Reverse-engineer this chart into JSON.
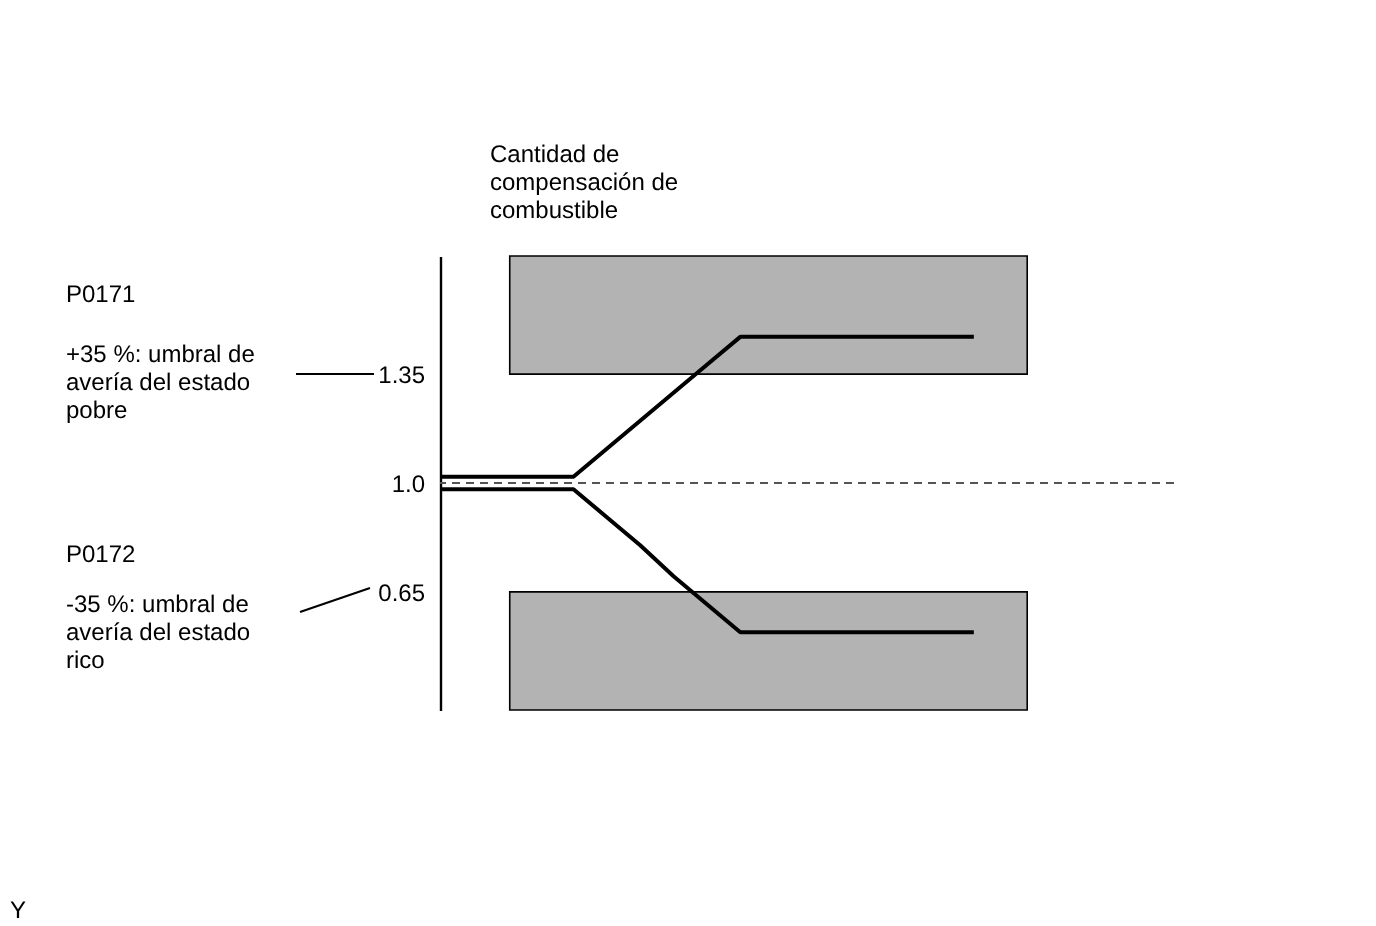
{
  "chart_data": {
    "type": "line",
    "ylabel": "Cantidad de compensación de combustible",
    "categories": [
      null,
      null,
      null,
      null,
      null,
      null,
      null,
      null,
      null,
      null,
      null,
      null,
      null,
      null,
      null,
      null,
      null,
      null,
      null,
      null,
      null,
      null,
      null
    ],
    "ylim": [
      0.27,
      1.73
    ],
    "yticks": [
      0.65,
      {
        "value": 1.0,
        "label": "1.0"
      },
      1.35
    ],
    "tick_labels": "y",
    "grid": false,
    "marker": "none",
    "line_style": "solid",
    "series": [
      {
        "color": "#000000",
        "values": [
          1.02,
          1.02,
          1.02,
          1.02,
          1.02,
          1.11,
          1.2,
          1.29,
          1.38,
          1.47,
          1.47,
          1.47,
          1.47,
          1.47,
          1.47,
          1.47,
          1.47,
          null,
          null,
          null,
          null,
          null,
          null
        ]
      },
      {
        "color": "#000000",
        "values": [
          0.98,
          0.98,
          0.98,
          0.98,
          0.98,
          0.89,
          0.8,
          0.7,
          0.61,
          0.52,
          0.52,
          0.52,
          0.52,
          0.52,
          0.52,
          0.52,
          0.52,
          null,
          null,
          null,
          null,
          null,
          null
        ]
      }
    ],
    "ref_lines": [
      {
        "axis": "y",
        "value": 1.0,
        "color": "#555555",
        "line_style": "dashed"
      }
    ],
    "bands": [
      {
        "axis": "y",
        "from": 1.35,
        "to": 1.73,
        "color": "#b3b3b3"
      },
      {
        "axis": "y",
        "from": 0.27,
        "to": 0.65,
        "color": "#b3b3b3"
      }
    ],
    "annotations": [
      "P0171",
      "+35 %: umbral de avería del estado pobre",
      "P0172",
      "-35 %: umbral de avería del estado rico",
      "Y"
    ]
  }
}
